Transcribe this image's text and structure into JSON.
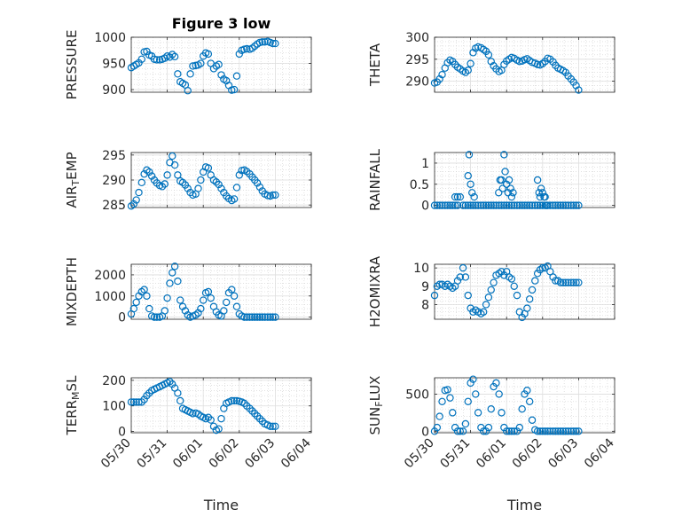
{
  "figure": {
    "title": "Figure 3 low",
    "marker_color": "#0072BD"
  },
  "chart_data": [
    {
      "type": "scatter",
      "title": "Figure 3 low",
      "ylabel": "PRESSURE",
      "ylabel_sub": null,
      "xlabel": "",
      "ylim": [
        895,
        1000
      ],
      "yticks": [
        900,
        950,
        1000
      ],
      "x_ticklabels": [
        "05/30",
        "05/31",
        "06/01",
        "06/02",
        "06/03",
        "06/04"
      ],
      "x_ticklabels_shown": false,
      "xlim": [
        0,
        5
      ],
      "grid": true,
      "minor_grid": true,
      "x": [
        0.0,
        0.07,
        0.14,
        0.21,
        0.29,
        0.36,
        0.43,
        0.5,
        0.57,
        0.64,
        0.71,
        0.79,
        0.86,
        0.93,
        1.0,
        1.07,
        1.14,
        1.21,
        1.29,
        1.36,
        1.43,
        1.5,
        1.57,
        1.64,
        1.71,
        1.79,
        1.86,
        1.93,
        2.0,
        2.07,
        2.14,
        2.21,
        2.29,
        2.36,
        2.43,
        2.5,
        2.57,
        2.64,
        2.71,
        2.79,
        2.86,
        2.93,
        3.0,
        3.07,
        3.14,
        3.21,
        3.29,
        3.36,
        3.43,
        3.5,
        3.57,
        3.64,
        3.71,
        3.79,
        3.86,
        3.93,
        4.0
      ],
      "y": [
        942,
        945,
        948,
        951,
        958,
        972,
        973,
        966,
        964,
        958,
        957,
        957,
        958,
        960,
        964,
        962,
        967,
        963,
        930,
        915,
        912,
        909,
        898,
        930,
        945,
        946,
        947,
        950,
        964,
        970,
        968,
        950,
        940,
        945,
        948,
        928,
        920,
        917,
        908,
        899,
        900,
        926,
        968,
        975,
        977,
        978,
        977,
        979,
        983,
        987,
        990,
        991,
        991,
        992,
        990,
        988,
        988
      ]
    },
    {
      "type": "scatter",
      "title": "",
      "ylabel": "THETA",
      "ylabel_sub": null,
      "xlabel": "",
      "ylim": [
        287.5,
        300
      ],
      "yticks": [
        290,
        295,
        300
      ],
      "x_ticklabels": [
        "05/30",
        "05/31",
        "06/01",
        "06/02",
        "06/03",
        "06/04"
      ],
      "x_ticklabels_shown": false,
      "xlim": [
        0,
        5
      ],
      "grid": true,
      "minor_grid": true,
      "x": [
        0.0,
        0.07,
        0.14,
        0.21,
        0.29,
        0.36,
        0.43,
        0.5,
        0.57,
        0.64,
        0.71,
        0.79,
        0.86,
        0.93,
        1.0,
        1.07,
        1.14,
        1.21,
        1.29,
        1.36,
        1.43,
        1.5,
        1.57,
        1.64,
        1.71,
        1.79,
        1.86,
        1.93,
        2.0,
        2.07,
        2.14,
        2.21,
        2.29,
        2.36,
        2.43,
        2.5,
        2.57,
        2.64,
        2.71,
        2.79,
        2.86,
        2.93,
        3.0,
        3.07,
        3.14,
        3.21,
        3.29,
        3.36,
        3.43,
        3.5,
        3.57,
        3.64,
        3.71,
        3.79,
        3.86,
        3.93,
        4.0
      ],
      "y": [
        289.6,
        289.8,
        290.5,
        291.5,
        293.0,
        294.2,
        294.8,
        294.5,
        293.8,
        293.2,
        292.8,
        292.3,
        292.0,
        292.5,
        294.0,
        296.5,
        297.5,
        297.8,
        297.6,
        297.2,
        296.8,
        296.0,
        294.5,
        293.5,
        292.8,
        292.2,
        292.5,
        293.8,
        294.6,
        295.0,
        295.4,
        295.2,
        294.8,
        294.5,
        294.6,
        294.9,
        295.1,
        294.7,
        294.3,
        294.1,
        293.8,
        293.7,
        294.0,
        294.5,
        295.2,
        295.0,
        294.4,
        293.6,
        293.0,
        292.7,
        292.4,
        292.0,
        291.2,
        290.5,
        289.8,
        289.0,
        288.0
      ]
    },
    {
      "type": "scatter",
      "title": "",
      "ylabel": "AIR",
      "ylabel_sub": "T",
      "ylabel_rest": "EMP",
      "xlabel": "",
      "ylim": [
        284.5,
        295.5
      ],
      "yticks": [
        285,
        290,
        295
      ],
      "x_ticklabels": [
        "05/30",
        "05/31",
        "06/01",
        "06/02",
        "06/03",
        "06/04"
      ],
      "x_ticklabels_shown": false,
      "xlim": [
        0,
        5
      ],
      "grid": true,
      "minor_grid": true,
      "x": [
        0.0,
        0.07,
        0.14,
        0.21,
        0.29,
        0.36,
        0.43,
        0.5,
        0.57,
        0.64,
        0.71,
        0.79,
        0.86,
        0.93,
        1.0,
        1.07,
        1.14,
        1.21,
        1.29,
        1.36,
        1.43,
        1.5,
        1.57,
        1.64,
        1.71,
        1.79,
        1.86,
        1.93,
        2.0,
        2.07,
        2.14,
        2.21,
        2.29,
        2.36,
        2.43,
        2.5,
        2.57,
        2.64,
        2.71,
        2.79,
        2.86,
        2.93,
        3.0,
        3.07,
        3.14,
        3.21,
        3.29,
        3.36,
        3.43,
        3.5,
        3.57,
        3.64,
        3.71,
        3.79,
        3.86,
        3.93,
        4.0
      ],
      "y": [
        284.8,
        285.2,
        286.0,
        287.5,
        289.5,
        291.2,
        292.0,
        291.6,
        290.8,
        290.0,
        289.4,
        288.9,
        288.7,
        289.2,
        291.0,
        293.5,
        294.8,
        293.0,
        291.0,
        289.8,
        289.5,
        289.0,
        288.3,
        287.5,
        287.0,
        287.2,
        288.3,
        290.0,
        291.6,
        292.6,
        292.4,
        291.0,
        290.0,
        289.6,
        289.1,
        288.3,
        287.5,
        286.8,
        286.3,
        285.9,
        286.2,
        288.5,
        291.0,
        291.9,
        292.0,
        291.7,
        291.2,
        290.6,
        290.0,
        289.4,
        288.6,
        287.8,
        287.2,
        286.9,
        286.8,
        287.0,
        287.0
      ]
    },
    {
      "type": "scatter",
      "title": "",
      "ylabel": "RAINFALL",
      "ylabel_sub": null,
      "xlabel": "",
      "ylim": [
        -0.05,
        1.25
      ],
      "yticks": [
        0,
        0.5,
        1
      ],
      "yticklabels": [
        "0",
        "0.5",
        "1"
      ],
      "x_ticklabels": [
        "05/30",
        "05/31",
        "06/01",
        "06/02",
        "06/03",
        "06/04"
      ],
      "x_ticklabels_shown": false,
      "xlim": [
        0,
        5
      ],
      "grid": true,
      "minor_grid": true,
      "x": [
        0.0,
        0.07,
        0.14,
        0.21,
        0.29,
        0.36,
        0.43,
        0.5,
        0.57,
        0.64,
        0.71,
        0.79,
        0.86,
        0.93,
        1.0,
        1.07,
        1.14,
        1.21,
        1.29,
        1.36,
        1.43,
        1.5,
        1.57,
        1.64,
        1.71,
        1.79,
        1.86,
        1.93,
        2.0,
        2.07,
        2.14,
        2.21,
        2.29,
        2.36,
        2.43,
        2.5,
        2.57,
        2.64,
        2.71,
        2.79,
        2.86,
        2.93,
        3.0,
        3.07,
        3.14,
        3.21,
        3.29,
        3.36,
        3.43,
        3.5,
        3.57,
        3.64,
        3.71,
        3.79,
        3.86,
        3.93,
        4.0,
        0.57,
        0.64,
        0.93,
        0.96,
        1.0,
        1.04,
        1.1,
        1.78,
        1.82,
        1.86,
        1.89,
        1.93,
        1.96,
        2.0,
        2.04,
        2.07,
        2.11,
        2.14,
        2.18,
        2.86,
        2.9,
        2.93,
        2.96,
        3.0,
        3.04,
        3.07,
        3.11
      ],
      "y": [
        0,
        0,
        0,
        0,
        0,
        0,
        0,
        0,
        0.2,
        0.2,
        0.2,
        0,
        0,
        0,
        0,
        0,
        0,
        0,
        0,
        0,
        0,
        0,
        0,
        0,
        0,
        0,
        0,
        0,
        0,
        0,
        0,
        0,
        0,
        0,
        0,
        0,
        0,
        0,
        0,
        0,
        0,
        0,
        0,
        0,
        0,
        0,
        0,
        0,
        0,
        0,
        0,
        0,
        0,
        0,
        0,
        0,
        0,
        0,
        0,
        0.7,
        1.2,
        0.5,
        0.3,
        0.2,
        0.3,
        0.6,
        0.6,
        0.4,
        1.2,
        0.8,
        0.5,
        0.3,
        0.6,
        0.4,
        0.2,
        0.3,
        0.6,
        0.3,
        0.2,
        0.4,
        0.3,
        0.2,
        0.2,
        0
      ]
    },
    {
      "type": "scatter",
      "title": "",
      "ylabel": "MIXDEPTH",
      "ylabel_sub": null,
      "xlabel": "",
      "ylim": [
        -100,
        2500
      ],
      "yticks": [
        0,
        1000,
        2000
      ],
      "x_ticklabels": [
        "05/30",
        "05/31",
        "06/01",
        "06/02",
        "06/03",
        "06/04"
      ],
      "x_ticklabels_shown": false,
      "xlim": [
        0,
        5
      ],
      "grid": true,
      "minor_grid": true,
      "x": [
        0.0,
        0.07,
        0.14,
        0.21,
        0.29,
        0.36,
        0.43,
        0.5,
        0.57,
        0.64,
        0.71,
        0.79,
        0.86,
        0.93,
        1.0,
        1.07,
        1.14,
        1.21,
        1.29,
        1.36,
        1.43,
        1.5,
        1.57,
        1.64,
        1.71,
        1.79,
        1.86,
        1.93,
        2.0,
        2.07,
        2.14,
        2.21,
        2.29,
        2.36,
        2.43,
        2.5,
        2.57,
        2.64,
        2.71,
        2.79,
        2.86,
        2.93,
        3.0,
        3.07,
        3.14,
        3.21,
        3.29,
        3.36,
        3.43,
        3.5,
        3.57,
        3.64,
        3.71,
        3.79,
        3.86,
        3.93,
        4.0
      ],
      "y": [
        150,
        400,
        700,
        1000,
        1200,
        1300,
        1000,
        400,
        50,
        0,
        0,
        0,
        50,
        300,
        900,
        1600,
        2100,
        2400,
        1700,
        800,
        500,
        300,
        100,
        0,
        50,
        100,
        200,
        400,
        800,
        1150,
        1200,
        900,
        500,
        250,
        100,
        50,
        300,
        700,
        1150,
        1300,
        1000,
        500,
        150,
        50,
        0,
        0,
        0,
        0,
        0,
        0,
        0,
        0,
        0,
        0,
        0,
        0,
        0
      ]
    },
    {
      "type": "scatter",
      "title": "",
      "ylabel": "H2OMIXRA",
      "ylabel_sub": null,
      "xlabel": "",
      "ylim": [
        7.2,
        10.2
      ],
      "yticks": [
        8,
        9,
        10
      ],
      "x_ticklabels": [
        "05/30",
        "05/31",
        "06/01",
        "06/02",
        "06/03",
        "06/04"
      ],
      "x_ticklabels_shown": false,
      "xlim": [
        0,
        5
      ],
      "grid": true,
      "minor_grid": true,
      "x": [
        0.0,
        0.07,
        0.14,
        0.21,
        0.29,
        0.36,
        0.43,
        0.5,
        0.57,
        0.64,
        0.71,
        0.79,
        0.86,
        0.93,
        1.0,
        1.07,
        1.14,
        1.21,
        1.29,
        1.36,
        1.43,
        1.5,
        1.57,
        1.64,
        1.71,
        1.79,
        1.86,
        1.93,
        2.0,
        2.07,
        2.14,
        2.21,
        2.29,
        2.36,
        2.43,
        2.5,
        2.57,
        2.64,
        2.71,
        2.79,
        2.86,
        2.93,
        3.0,
        3.07,
        3.14,
        3.21,
        3.29,
        3.36,
        3.43,
        3.5,
        3.57,
        3.64,
        3.71,
        3.79,
        3.86,
        3.93,
        4.0
      ],
      "y": [
        8.5,
        9.0,
        9.1,
        9.1,
        9.0,
        9.1,
        9.0,
        8.9,
        9.0,
        9.3,
        9.5,
        10.0,
        9.5,
        8.5,
        7.8,
        7.6,
        7.7,
        7.6,
        7.5,
        7.6,
        8.0,
        8.4,
        8.8,
        9.2,
        9.6,
        9.7,
        9.8,
        9.6,
        9.8,
        9.5,
        9.4,
        9.0,
        8.5,
        7.6,
        7.3,
        7.5,
        7.8,
        8.3,
        8.8,
        9.3,
        9.7,
        9.9,
        10.0,
        10.0,
        10.1,
        9.8,
        9.5,
        9.3,
        9.3,
        9.2,
        9.2,
        9.2,
        9.2,
        9.2,
        9.2,
        9.2,
        9.2
      ]
    },
    {
      "type": "scatter",
      "title": "",
      "ylabel": "TERR",
      "ylabel_sub": "M",
      "ylabel_rest": "SL",
      "xlabel": "Time",
      "ylim": [
        -5,
        210
      ],
      "yticks": [
        0,
        100,
        200
      ],
      "x_ticklabels": [
        "05/30",
        "05/31",
        "06/01",
        "06/02",
        "06/03",
        "06/04"
      ],
      "x_ticklabels_shown": true,
      "xlim": [
        0,
        5
      ],
      "grid": true,
      "minor_grid": true,
      "x": [
        0.0,
        0.07,
        0.14,
        0.21,
        0.29,
        0.36,
        0.43,
        0.5,
        0.57,
        0.64,
        0.71,
        0.79,
        0.86,
        0.93,
        1.0,
        1.07,
        1.14,
        1.21,
        1.29,
        1.36,
        1.43,
        1.5,
        1.57,
        1.64,
        1.71,
        1.79,
        1.86,
        1.93,
        2.0,
        2.07,
        2.14,
        2.21,
        2.29,
        2.36,
        2.43,
        2.5,
        2.57,
        2.64,
        2.71,
        2.79,
        2.86,
        2.93,
        3.0,
        3.07,
        3.14,
        3.21,
        3.29,
        3.36,
        3.43,
        3.5,
        3.57,
        3.64,
        3.71,
        3.79,
        3.86,
        3.93,
        4.0
      ],
      "y": [
        115,
        115,
        115,
        115,
        115,
        125,
        140,
        150,
        160,
        165,
        170,
        175,
        180,
        185,
        190,
        195,
        185,
        170,
        150,
        120,
        90,
        85,
        80,
        75,
        70,
        72,
        68,
        60,
        55,
        50,
        55,
        45,
        20,
        5,
        10,
        50,
        90,
        110,
        115,
        120,
        120,
        120,
        118,
        115,
        110,
        100,
        90,
        80,
        70,
        60,
        50,
        40,
        30,
        25,
        20,
        20,
        20
      ]
    },
    {
      "type": "scatter",
      "title": "",
      "ylabel": "SUN",
      "ylabel_sub": "F",
      "ylabel_rest": "LUX",
      "xlabel": "Time",
      "ylim": [
        -20,
        720
      ],
      "yticks": [
        0,
        500
      ],
      "x_ticklabels": [
        "05/30",
        "05/31",
        "06/01",
        "06/02",
        "06/03",
        "06/04"
      ],
      "x_ticklabels_shown": true,
      "xlim": [
        0,
        5
      ],
      "grid": true,
      "minor_grid": true,
      "x": [
        0.0,
        0.07,
        0.14,
        0.21,
        0.29,
        0.36,
        0.43,
        0.5,
        0.57,
        0.64,
        0.71,
        0.79,
        0.86,
        0.93,
        1.0,
        1.07,
        1.14,
        1.21,
        1.29,
        1.36,
        1.43,
        1.5,
        1.57,
        1.64,
        1.71,
        1.79,
        1.86,
        1.93,
        2.0,
        2.07,
        2.14,
        2.21,
        2.29,
        2.36,
        2.43,
        2.5,
        2.57,
        2.64,
        2.71,
        2.79,
        2.86,
        2.93,
        3.0,
        3.07,
        3.14,
        3.21,
        3.29,
        3.36,
        3.43,
        3.5,
        3.57,
        3.64,
        3.71,
        3.79,
        3.86,
        3.93,
        4.0
      ],
      "y": [
        0,
        50,
        200,
        400,
        550,
        560,
        450,
        250,
        50,
        0,
        0,
        0,
        100,
        400,
        650,
        700,
        500,
        250,
        50,
        0,
        0,
        50,
        300,
        600,
        650,
        500,
        250,
        50,
        0,
        0,
        0,
        0,
        0,
        50,
        300,
        500,
        550,
        400,
        150,
        20,
        0,
        0,
        0,
        0,
        0,
        0,
        0,
        0,
        0,
        0,
        0,
        0,
        0,
        0,
        0,
        0,
        0
      ]
    }
  ]
}
